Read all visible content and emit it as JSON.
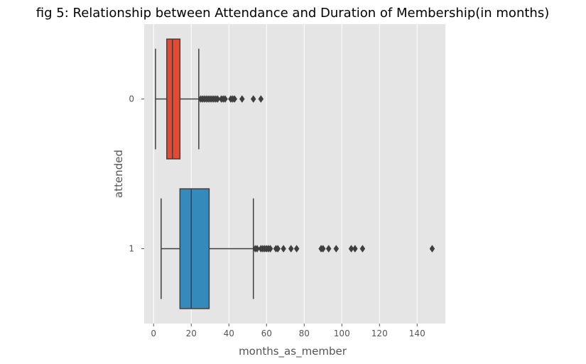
{
  "chart_data": {
    "type": "boxplot",
    "orientation": "horizontal",
    "title": "fig 5: Relationship between Attendance and Duration of Membership(in months)",
    "xlabel": "months_as_member",
    "ylabel": "attended",
    "xlim": [
      -5,
      155
    ],
    "xticks": [
      0,
      20,
      40,
      60,
      80,
      100,
      120,
      140
    ],
    "grid": true,
    "categories": [
      "0",
      "1"
    ],
    "boxes": [
      {
        "category": "0",
        "color": "#E24A33",
        "whisker_low": 1,
        "q1": 7,
        "median": 10,
        "q3": 14,
        "whisker_high": 24,
        "outliers": [
          25,
          26,
          27,
          28,
          29,
          30,
          31,
          32,
          33,
          34,
          36,
          37,
          38,
          41,
          42,
          43,
          47,
          53,
          57
        ]
      },
      {
        "category": "1",
        "color": "#348ABD",
        "whisker_low": 4,
        "q1": 14,
        "median": 20,
        "q3": 29.5,
        "whisker_high": 53,
        "outliers": [
          54,
          55,
          57,
          58,
          59,
          60,
          61,
          62,
          65,
          66,
          69,
          73,
          76,
          89,
          90,
          93,
          97,
          105,
          107,
          111,
          148
        ]
      }
    ]
  }
}
